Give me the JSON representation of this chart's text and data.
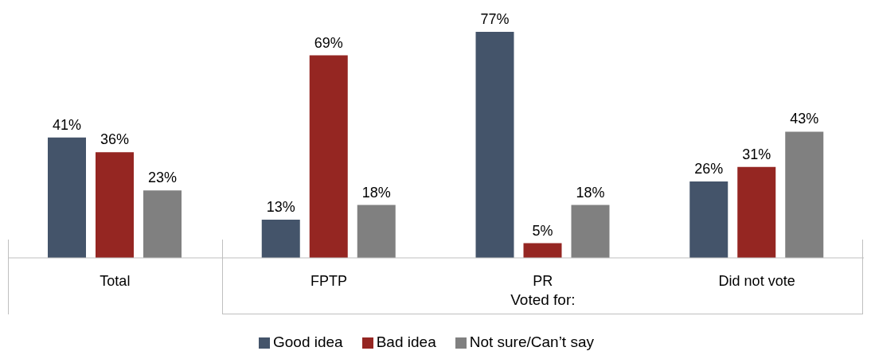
{
  "chart_data": {
    "type": "bar",
    "categories": [
      "Total",
      "FPTP",
      "PR",
      "Did not vote"
    ],
    "series": [
      {
        "name": "Good idea",
        "color": "#44546a",
        "values": [
          41,
          13,
          77,
          26
        ],
        "value_labels": [
          "41%",
          "13%",
          "77%",
          "26%"
        ]
      },
      {
        "name": "Bad idea",
        "color": "#952622",
        "values": [
          36,
          69,
          5,
          31
        ],
        "value_labels": [
          "36%",
          "69%",
          "5%",
          "31%"
        ]
      },
      {
        "name": "Not sure/Can’t say",
        "color": "#808080",
        "values": [
          23,
          18,
          18,
          43
        ],
        "value_labels": [
          "23%",
          "18%",
          "18%",
          "43%"
        ]
      }
    ],
    "annotations": [
      "Voted for:"
    ],
    "legend": "bottom",
    "grid": false
  }
}
